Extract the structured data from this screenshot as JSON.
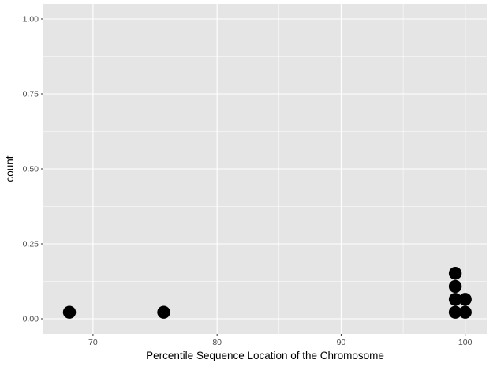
{
  "chart_data": {
    "type": "scatter",
    "subtype": "dotplot",
    "title": "",
    "xlabel": "Percentile Sequence Location of the Chromosome",
    "ylabel": "count",
    "xlim": [
      66,
      101.8
    ],
    "ylim": [
      -0.05,
      1.05
    ],
    "x_ticks": [
      70,
      80,
      90,
      100
    ],
    "x_tick_labels": [
      "70",
      "80",
      "90",
      "100"
    ],
    "x_minor_ticks": [
      75,
      85,
      95
    ],
    "y_ticks": [
      0,
      0.25,
      0.5,
      0.75,
      1
    ],
    "y_tick_labels": [
      "0.00",
      "0.25",
      "0.50",
      "0.75",
      "1.00"
    ],
    "y_minor_ticks": [
      0.125,
      0.375,
      0.625,
      0.875
    ],
    "grid": true,
    "panel_background": "#e5e5e5",
    "grid_color": "#ffffff",
    "point_color": "#000000",
    "points": [
      {
        "x": 68.1,
        "y": 0.022
      },
      {
        "x": 75.7,
        "y": 0.022
      },
      {
        "x": 99.2,
        "y": 0.022
      },
      {
        "x": 99.2,
        "y": 0.065
      },
      {
        "x": 99.2,
        "y": 0.108
      },
      {
        "x": 99.2,
        "y": 0.152
      },
      {
        "x": 100.0,
        "y": 0.022
      },
      {
        "x": 100.0,
        "y": 0.065
      }
    ]
  }
}
